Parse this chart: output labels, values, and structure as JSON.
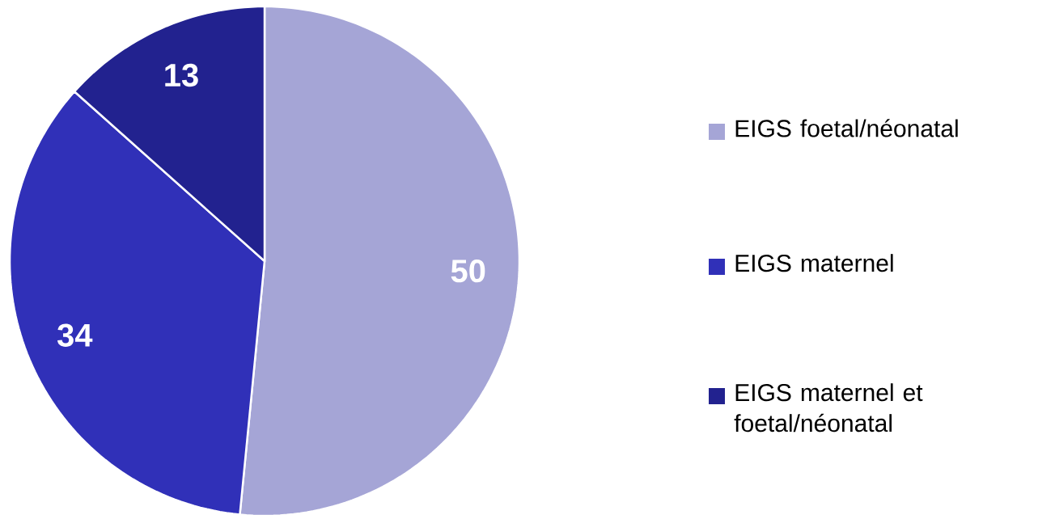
{
  "chart_data": {
    "type": "pie",
    "categories": [
      "EIGS foetal/néonatal",
      "EIGS maternel",
      "EIGS maternel et foetal/néonatal"
    ],
    "values": [
      50,
      34,
      13
    ],
    "colors": [
      "#a5a5d6",
      "#3030b8",
      "#22228f"
    ],
    "data_labels": true,
    "legend": "right"
  }
}
